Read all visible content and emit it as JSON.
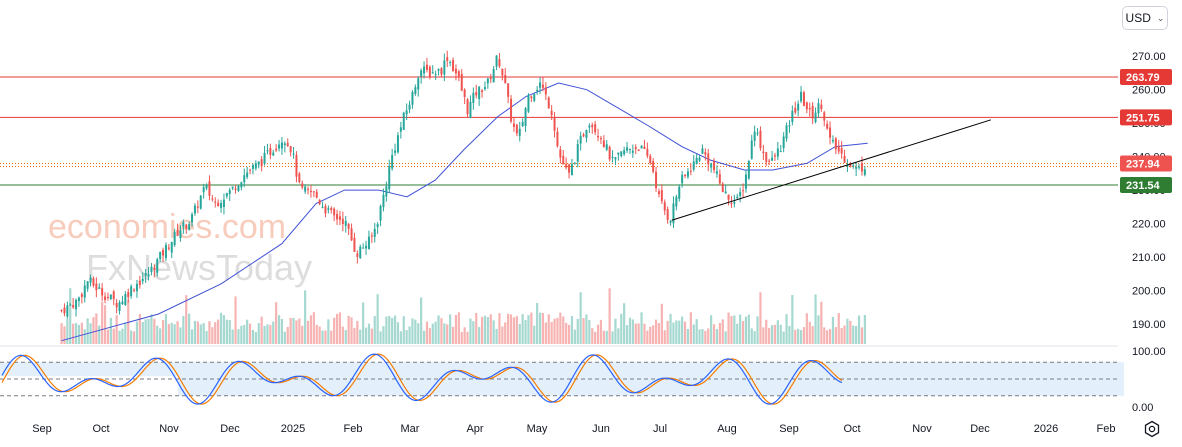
{
  "currency": {
    "label": "USD"
  },
  "colors": {
    "up": "#26a69a",
    "down": "#ef5350",
    "ma": "#3f51d6",
    "resistance": "#e53935",
    "support": "#2e7d32",
    "current_dotted": "#ef6c00",
    "trendline": "#000000",
    "stoch_k": "#2962ff",
    "stoch_d": "#f57c00",
    "stoch_band": "#e3f0fb"
  },
  "watermark": {
    "line1": "economies.com",
    "line2": "FxNewsToday"
  },
  "chart_data": {
    "type": "candlestick",
    "x_axis": {
      "labels": [
        "Sep",
        "Oct",
        "Nov",
        "Dec",
        "2025",
        "Feb",
        "Mar",
        "Apr",
        "May",
        "Jun",
        "Jul",
        "Aug",
        "Sep",
        "Oct",
        "Nov",
        "Dec",
        "2026",
        "Feb"
      ]
    },
    "y_axis": {
      "ticks": [
        "270.00",
        "260.00",
        "250.00",
        "240.00",
        "230.00",
        "220.00",
        "210.00",
        "200.00",
        "190.00"
      ],
      "ylim": [
        186,
        283
      ]
    },
    "key_prices": [
      {
        "label": "263.79",
        "value": 263.79,
        "role": "resistance"
      },
      {
        "label": "251.75",
        "value": 251.75,
        "role": "resistance"
      },
      {
        "label": "237.94",
        "value": 237.94,
        "role": "current"
      },
      {
        "label": "231.54",
        "value": 231.54,
        "role": "support"
      }
    ],
    "close_path": [
      [
        "Aug 28 2024",
        194
      ],
      [
        "Sep 05 2024",
        197
      ],
      [
        "Sep 10 2024",
        203
      ],
      [
        "Sep 18 2024",
        199
      ],
      [
        "Sep 25 2024",
        196
      ],
      [
        "Oct 02 2024",
        201
      ],
      [
        "Oct 10 2024",
        205
      ],
      [
        "Oct 18 2024",
        212
      ],
      [
        "Oct 25 2024",
        218
      ],
      [
        "Oct 31 2024",
        221
      ],
      [
        "Nov 07 2024",
        231
      ],
      [
        "Nov 12 2024",
        226
      ],
      [
        "Nov 20 2024",
        230
      ],
      [
        "Nov 27 2024",
        235
      ],
      [
        "Dec 04 2024",
        238
      ],
      [
        "Dec 10 2024",
        242
      ],
      [
        "Dec 16 2024",
        246
      ],
      [
        "Dec 20 2024",
        242
      ],
      [
        "Dec 24 2024",
        230
      ],
      [
        "Dec 31 2024",
        229
      ],
      [
        "Jan 06 2025",
        224
      ],
      [
        "Jan 10 2025",
        222
      ],
      [
        "Jan 15 2025",
        221
      ],
      [
        "Jan 21 2025",
        211
      ],
      [
        "Jan 24 2025",
        213
      ],
      [
        "Jan 28 2025",
        215
      ],
      [
        "Jan 31 2025",
        220
      ],
      [
        "Feb 04 2025",
        230
      ],
      [
        "Feb 07 2025",
        239
      ],
      [
        "Feb 13 2025",
        251
      ],
      [
        "Feb 18 2025",
        259
      ],
      [
        "Feb 21 2025",
        266
      ],
      [
        "Feb 27 2025",
        265
      ],
      [
        "Mar 04 2025",
        266
      ],
      [
        "Mar 07 2025",
        270
      ],
      [
        "Mar 12 2025",
        264
      ],
      [
        "Mar 17 2025",
        254
      ],
      [
        "Mar 21 2025",
        259
      ],
      [
        "Mar 27 2025",
        262
      ],
      [
        "Apr 01 2025",
        270
      ],
      [
        "Apr 04 2025",
        263
      ],
      [
        "Apr 08 2025",
        250
      ],
      [
        "Apr 11 2025",
        245
      ],
      [
        "Apr 16 2025",
        258
      ],
      [
        "Apr 22 2025",
        262
      ],
      [
        "Apr 28 2025",
        253
      ],
      [
        "May 01 2025",
        241
      ],
      [
        "May 06 2025",
        234
      ],
      [
        "May 12 2025",
        245
      ],
      [
        "May 16 2025",
        251
      ],
      [
        "May 22 2025",
        246
      ],
      [
        "May 28 2025",
        238
      ],
      [
        "Jun 03 2025",
        242
      ],
      [
        "Jun 10 2025",
        243
      ],
      [
        "Jun 16 2025",
        238
      ],
      [
        "Jun 20 2025",
        227
      ],
      [
        "Jun 25 2025",
        221
      ],
      [
        "Jun 30 2025",
        232
      ],
      [
        "Jul 07 2025",
        238
      ],
      [
        "Jul 11 2025",
        242
      ],
      [
        "Jul 17 2025",
        236
      ],
      [
        "Jul 22 2025",
        229
      ],
      [
        "Jul 28 2025",
        226
      ],
      [
        "Aug 01 2025",
        232
      ],
      [
        "Aug 06 2025",
        249
      ],
      [
        "Aug 11 2025",
        240
      ],
      [
        "Aug 14 2025",
        238
      ],
      [
        "Aug 19 2025",
        243
      ],
      [
        "Aug 25 2025",
        253
      ],
      [
        "Aug 29 2025",
        258
      ],
      [
        "Sep 03 2025",
        252
      ],
      [
        "Sep 08 2025",
        256
      ],
      [
        "Sep 12 2025",
        245
      ],
      [
        "Sep 16 2025",
        242
      ],
      [
        "Sep 22 2025",
        238
      ],
      [
        "Sep 26 2025",
        236
      ],
      [
        "Oct 01 2025",
        238
      ]
    ],
    "moving_average": [
      [
        "Aug 28 2024",
        185
      ],
      [
        "Sep 15 2024",
        188
      ],
      [
        "Oct 15 2024",
        193
      ],
      [
        "Nov 15 2024",
        202
      ],
      [
        "Dec 15 2024",
        214
      ],
      [
        "Jan 01 2025",
        226
      ],
      [
        "Jan 15 2025",
        230
      ],
      [
        "Feb 01 2025",
        230
      ],
      [
        "Feb 15 2025",
        228
      ],
      [
        "Mar 01 2025",
        233
      ],
      [
        "Mar 15 2025",
        242
      ],
      [
        "Apr 01 2025",
        252
      ],
      [
        "Apr 15 2025",
        258
      ],
      [
        "May 01 2025",
        262
      ],
      [
        "May 15 2025",
        260
      ],
      [
        "Jun 01 2025",
        254
      ],
      [
        "Jun 15 2025",
        249
      ],
      [
        "Jul 01 2025",
        243
      ],
      [
        "Jul 15 2025",
        239
      ],
      [
        "Aug 01 2025",
        236
      ],
      [
        "Aug 15 2025",
        236
      ],
      [
        "Sep 01 2025",
        238
      ],
      [
        "Sep 15 2025",
        243
      ],
      [
        "Oct 01 2025",
        244
      ]
    ],
    "trendline": {
      "start": [
        "Jun 26 2025",
        221
      ],
      "end": [
        "Dec 01 2025",
        251
      ]
    },
    "volume_axis_max": 100,
    "stochastic": {
      "ticks": [
        "100.00",
        "0.00"
      ],
      "upper_band": 80,
      "lower_band": 20,
      "mid_line": 50
    }
  }
}
